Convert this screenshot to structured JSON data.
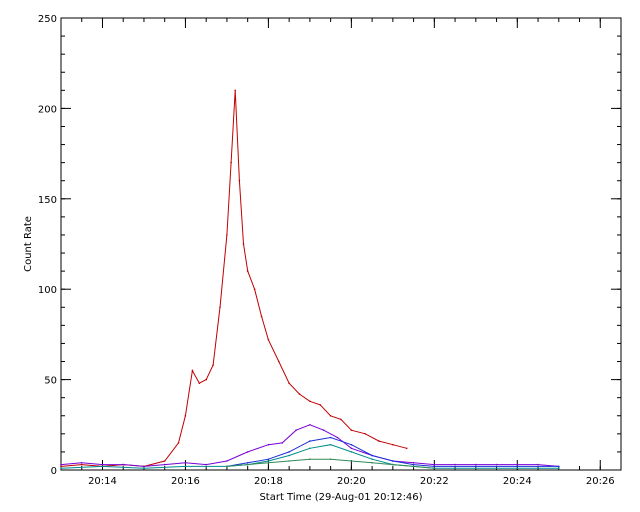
{
  "chart_data": {
    "type": "line",
    "xlabel": "Start Time (29-Aug-01 20:12:46)",
    "ylabel": "Count Rate",
    "x_unit": "time of day (HH:MM), 29-Aug-01",
    "xlim": [
      "20:13:00",
      "20:26:30"
    ],
    "ylim": [
      0,
      250
    ],
    "x_tick_labels": [
      "20:14",
      "20:16",
      "20:18",
      "20:20",
      "20:22",
      "20:24",
      "20:26"
    ],
    "y_tick_labels": [
      "0",
      "50",
      "100",
      "150",
      "200",
      "250"
    ],
    "grid": false,
    "legend": "none",
    "series": [
      {
        "color": "#c00000",
        "x": [
          "20:13:00",
          "20:13:30",
          "20:14:00",
          "20:14:30",
          "20:15:00",
          "20:15:30",
          "20:15:50",
          "20:16:00",
          "20:16:10",
          "20:16:20",
          "20:16:30",
          "20:16:40",
          "20:16:50",
          "20:17:00",
          "20:17:06",
          "20:17:12",
          "20:17:18",
          "20:17:24",
          "20:17:30",
          "20:17:40",
          "20:17:50",
          "20:18:00",
          "20:18:15",
          "20:18:30",
          "20:18:45",
          "20:19:00",
          "20:19:15",
          "20:19:30",
          "20:19:45",
          "20:20:00",
          "20:20:20",
          "20:20:40",
          "20:21:00",
          "20:21:20"
        ],
        "y": [
          2,
          3,
          2,
          3,
          2,
          5,
          15,
          30,
          55,
          48,
          50,
          58,
          90,
          130,
          170,
          210,
          160,
          125,
          110,
          100,
          85,
          72,
          60,
          48,
          42,
          38,
          36,
          30,
          28,
          22,
          20,
          16,
          14,
          12
        ]
      },
      {
        "color": "#7a00d6",
        "x": [
          "20:13:00",
          "20:13:30",
          "20:14:00",
          "20:14:30",
          "20:15:00",
          "20:15:30",
          "20:16:00",
          "20:16:30",
          "20:17:00",
          "20:17:30",
          "20:18:00",
          "20:18:20",
          "20:18:40",
          "20:19:00",
          "20:19:20",
          "20:19:40",
          "20:20:00",
          "20:20:30",
          "20:21:00",
          "20:21:30",
          "20:22:00",
          "20:22:30",
          "20:23:00",
          "20:23:30",
          "20:24:00",
          "20:24:30",
          "20:25:00"
        ],
        "y": [
          3,
          4,
          3,
          3,
          2,
          3,
          4,
          3,
          5,
          10,
          14,
          15,
          22,
          25,
          22,
          18,
          12,
          8,
          5,
          4,
          3,
          3,
          3,
          3,
          3,
          3,
          2
        ]
      },
      {
        "color": "#1a2fd6",
        "x": [
          "20:17:00",
          "20:17:30",
          "20:18:00",
          "20:18:30",
          "20:19:00",
          "20:19:30",
          "20:20:00",
          "20:20:30",
          "20:21:00",
          "20:21:30",
          "20:22:00",
          "20:23:00",
          "20:24:00",
          "20:25:00"
        ],
        "y": [
          2,
          4,
          6,
          10,
          16,
          18,
          14,
          8,
          5,
          3,
          2,
          2,
          2,
          2
        ]
      },
      {
        "color": "#008b8b",
        "x": [
          "20:13:00",
          "20:14:00",
          "20:15:00",
          "20:16:00",
          "20:17:00",
          "20:17:30",
          "20:18:00",
          "20:18:30",
          "20:19:00",
          "20:19:30",
          "20:20:00",
          "20:20:30",
          "20:21:00",
          "20:21:30",
          "20:22:00",
          "20:23:00",
          "20:24:00",
          "20:25:00"
        ],
        "y": [
          1,
          2,
          1,
          2,
          2,
          3,
          5,
          8,
          12,
          14,
          10,
          6,
          3,
          2,
          1,
          1,
          1,
          1
        ]
      },
      {
        "color": "#2e8b57",
        "x": [
          "20:17:00",
          "20:17:30",
          "20:18:00",
          "20:18:30",
          "20:19:00",
          "20:19:30",
          "20:20:00",
          "20:20:30",
          "20:21:00",
          "20:21:30",
          "20:22:00"
        ],
        "y": [
          2,
          3,
          4,
          5,
          6,
          6,
          5,
          4,
          3,
          2,
          1
        ]
      }
    ]
  }
}
